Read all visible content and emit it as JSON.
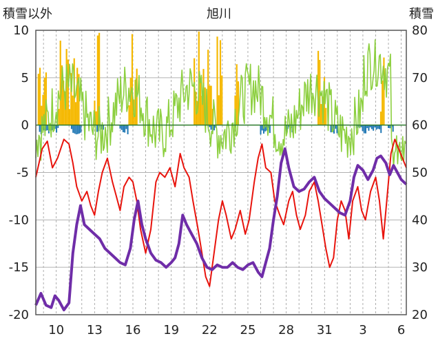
{
  "chart_data": {
    "type": "line",
    "title": "旭川",
    "ylabel_left": "積雪以外",
    "ylabel_right": "積雪",
    "ylim_left": [
      -20,
      10
    ],
    "ylim_right": [
      20,
      80
    ],
    "yticks_left": [
      "10",
      "5",
      "0",
      "-5",
      "-10",
      "-15",
      "-20"
    ],
    "yticks_right": [
      "80",
      "70",
      "60",
      "50",
      "40",
      "30",
      "20"
    ],
    "xticks": [
      "10",
      "13",
      "16",
      "19",
      "22",
      "25",
      "28",
      "31",
      "3",
      "6"
    ],
    "x_range_days": [
      8.4,
      37.4
    ],
    "grid": "vertical dashed lines each day, horizontal lines at 5-unit steps",
    "colors": {
      "snowfall": "#f5b800",
      "precipitation": "#1f77b4",
      "humidity_like": "#8ccf3f",
      "temperature": "#e8130c",
      "snow_depth": "#6f2da8",
      "frame": "#555555",
      "grid": "#999999"
    },
    "series": [
      {
        "axis": "left",
        "kind": "line",
        "color": "#e8130c",
        "points": [
          [
            8.4,
            -5.5
          ],
          [
            8.9,
            -2.5
          ],
          [
            9.3,
            -1.7
          ],
          [
            9.7,
            -4.5
          ],
          [
            10.1,
            -3.5
          ],
          [
            10.6,
            -1.5
          ],
          [
            11.0,
            -2.0
          ],
          [
            11.3,
            -4.0
          ],
          [
            11.6,
            -6.5
          ],
          [
            12.0,
            -8.0
          ],
          [
            12.4,
            -7.0
          ],
          [
            12.7,
            -8.5
          ],
          [
            13.0,
            -9.5
          ],
          [
            13.3,
            -7.0
          ],
          [
            13.6,
            -5.0
          ],
          [
            14.0,
            -3.5
          ],
          [
            14.4,
            -6.0
          ],
          [
            14.7,
            -7.5
          ],
          [
            15.0,
            -9.0
          ],
          [
            15.3,
            -6.5
          ],
          [
            15.7,
            -5.5
          ],
          [
            16.0,
            -6.0
          ],
          [
            16.3,
            -8.0
          ],
          [
            16.6,
            -11.0
          ],
          [
            17.0,
            -13.5
          ],
          [
            17.4,
            -11.0
          ],
          [
            17.8,
            -6.0
          ],
          [
            18.1,
            -5.0
          ],
          [
            18.5,
            -5.5
          ],
          [
            18.9,
            -4.5
          ],
          [
            19.3,
            -6.5
          ],
          [
            19.7,
            -3.0
          ],
          [
            20.0,
            -4.5
          ],
          [
            20.4,
            -5.5
          ],
          [
            20.7,
            -8.0
          ],
          [
            21.1,
            -11.0
          ],
          [
            21.4,
            -13.5
          ],
          [
            21.7,
            -16.0
          ],
          [
            22.0,
            -17.0
          ],
          [
            22.3,
            -14.0
          ],
          [
            22.7,
            -10.0
          ],
          [
            23.0,
            -8.0
          ],
          [
            23.3,
            -9.5
          ],
          [
            23.7,
            -12.0
          ],
          [
            24.0,
            -11.0
          ],
          [
            24.4,
            -9.0
          ],
          [
            24.8,
            -11.5
          ],
          [
            25.1,
            -10.0
          ],
          [
            25.5,
            -6.0
          ],
          [
            25.8,
            -3.5
          ],
          [
            26.1,
            -2.0
          ],
          [
            26.4,
            -4.5
          ],
          [
            26.8,
            -5.0
          ],
          [
            27.1,
            -8.0
          ],
          [
            27.5,
            -9.5
          ],
          [
            27.8,
            -10.5
          ],
          [
            28.2,
            -8.0
          ],
          [
            28.5,
            -7.0
          ],
          [
            28.8,
            -9.5
          ],
          [
            29.1,
            -11.0
          ],
          [
            29.5,
            -9.5
          ],
          [
            29.8,
            -7.0
          ],
          [
            30.2,
            -6.0
          ],
          [
            30.5,
            -8.0
          ],
          [
            30.8,
            -10.5
          ],
          [
            31.1,
            -13.0
          ],
          [
            31.4,
            -15.0
          ],
          [
            31.7,
            -14.0
          ],
          [
            32.0,
            -10.0
          ],
          [
            32.3,
            -8.0
          ],
          [
            32.6,
            -9.0
          ],
          [
            32.9,
            -12.0
          ],
          [
            33.2,
            -8.0
          ],
          [
            33.6,
            -6.5
          ],
          [
            33.9,
            -9.0
          ],
          [
            34.2,
            -10.0
          ],
          [
            34.6,
            -7.0
          ],
          [
            35.0,
            -5.5
          ],
          [
            35.3,
            -8.0
          ],
          [
            35.6,
            -12.0
          ],
          [
            35.9,
            -7.5
          ],
          [
            36.2,
            -3.0
          ],
          [
            36.5,
            -1.5
          ],
          [
            36.8,
            -2.5
          ],
          [
            37.1,
            -3.5
          ],
          [
            37.4,
            -4.5
          ]
        ]
      },
      {
        "axis": "right",
        "kind": "line",
        "color": "#6f2da8",
        "points": [
          [
            8.4,
            22.0
          ],
          [
            8.8,
            24.5
          ],
          [
            9.2,
            22.0
          ],
          [
            9.6,
            21.5
          ],
          [
            9.9,
            24.0
          ],
          [
            10.2,
            23.0
          ],
          [
            10.6,
            21.0
          ],
          [
            11.0,
            22.5
          ],
          [
            11.3,
            33.0
          ],
          [
            11.6,
            39.0
          ],
          [
            11.9,
            43.0
          ],
          [
            12.2,
            39.0
          ],
          [
            12.6,
            38.0
          ],
          [
            13.0,
            37.0
          ],
          [
            13.4,
            36.0
          ],
          [
            13.8,
            34.0
          ],
          [
            14.2,
            33.0
          ],
          [
            14.6,
            32.0
          ],
          [
            15.0,
            31.0
          ],
          [
            15.4,
            30.5
          ],
          [
            15.8,
            34.0
          ],
          [
            16.1,
            40.0
          ],
          [
            16.4,
            44.0
          ],
          [
            16.7,
            39.0
          ],
          [
            17.0,
            36.0
          ],
          [
            17.4,
            33.0
          ],
          [
            17.8,
            31.5
          ],
          [
            18.2,
            31.0
          ],
          [
            18.6,
            30.0
          ],
          [
            19.0,
            31.0
          ],
          [
            19.3,
            32.0
          ],
          [
            19.6,
            35.0
          ],
          [
            19.9,
            41.0
          ],
          [
            20.2,
            39.0
          ],
          [
            20.6,
            37.0
          ],
          [
            21.0,
            35.0
          ],
          [
            21.4,
            32.0
          ],
          [
            21.8,
            30.0
          ],
          [
            22.2,
            29.5
          ],
          [
            22.6,
            30.5
          ],
          [
            23.0,
            30.0
          ],
          [
            23.4,
            30.0
          ],
          [
            23.8,
            31.0
          ],
          [
            24.2,
            30.0
          ],
          [
            24.6,
            29.5
          ],
          [
            25.0,
            30.5
          ],
          [
            25.4,
            31.0
          ],
          [
            25.8,
            29.0
          ],
          [
            26.1,
            28.0
          ],
          [
            26.4,
            31.0
          ],
          [
            26.7,
            34.0
          ],
          [
            27.0,
            40.0
          ],
          [
            27.3,
            45.0
          ],
          [
            27.6,
            52.0
          ],
          [
            27.9,
            55.0
          ],
          [
            28.2,
            51.0
          ],
          [
            28.6,
            47.0
          ],
          [
            29.0,
            46.0
          ],
          [
            29.4,
            46.5
          ],
          [
            29.8,
            48.0
          ],
          [
            30.2,
            49.0
          ],
          [
            30.6,
            46.0
          ],
          [
            31.0,
            44.5
          ],
          [
            31.4,
            43.5
          ],
          [
            31.8,
            42.5
          ],
          [
            32.2,
            41.5
          ],
          [
            32.6,
            41.0
          ],
          [
            33.0,
            44.0
          ],
          [
            33.3,
            49.0
          ],
          [
            33.6,
            51.5
          ],
          [
            34.0,
            50.5
          ],
          [
            34.4,
            48.5
          ],
          [
            34.8,
            50.5
          ],
          [
            35.1,
            53.0
          ],
          [
            35.4,
            53.5
          ],
          [
            35.8,
            52.0
          ],
          [
            36.1,
            49.5
          ],
          [
            36.4,
            51.5
          ],
          [
            36.7,
            50.0
          ],
          [
            37.0,
            48.5
          ],
          [
            37.4,
            47.5
          ]
        ]
      }
    ]
  }
}
